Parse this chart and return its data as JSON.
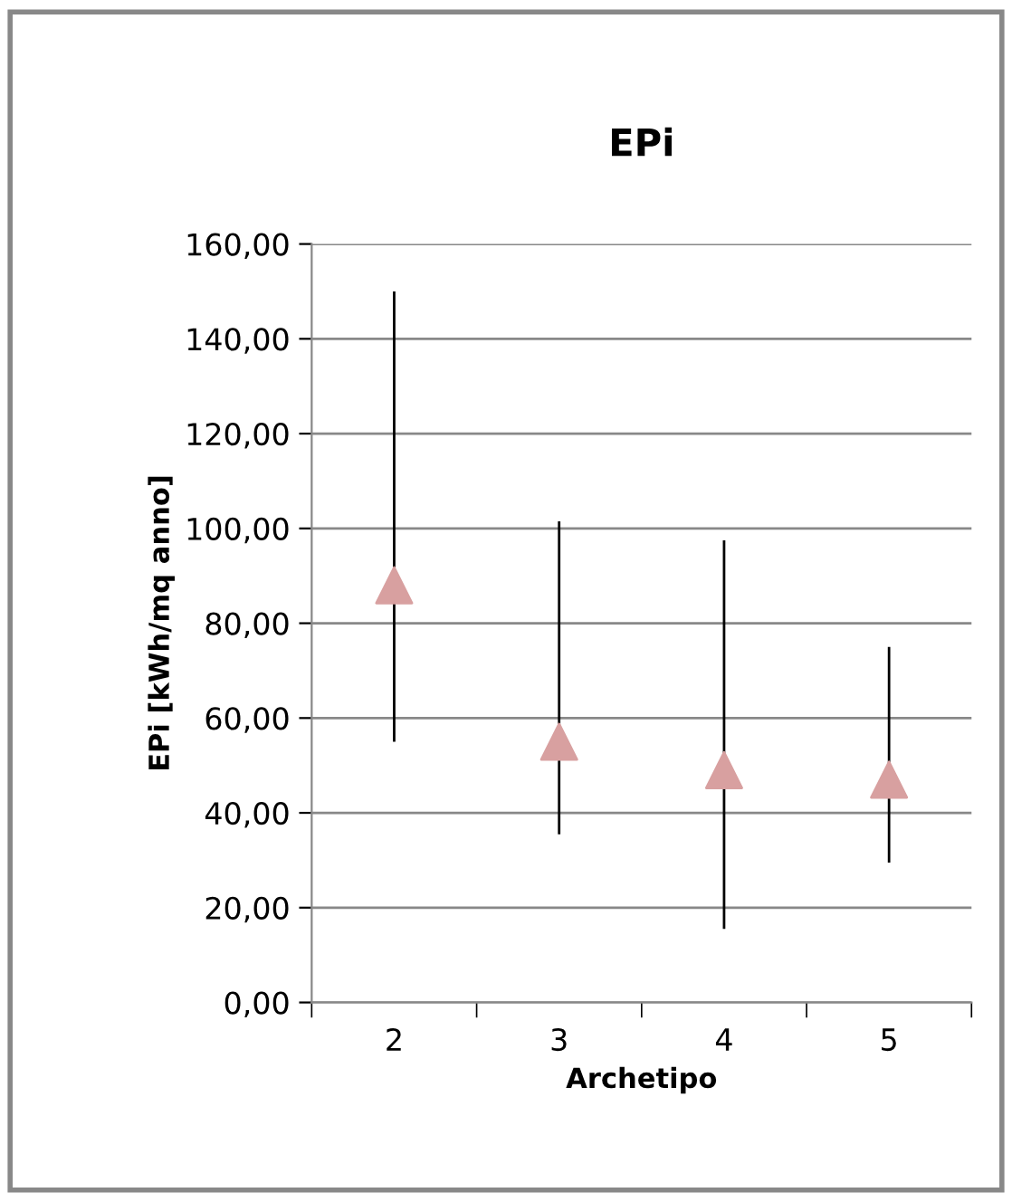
{
  "chart_data": {
    "type": "scatter",
    "title": "EPi",
    "xlabel": "Archetipo",
    "ylabel": "EPi [kWh/mq anno]",
    "categories": [
      "2",
      "3",
      "4",
      "5"
    ],
    "values": [
      88,
      55,
      49,
      47
    ],
    "errors": [
      [
        55,
        150
      ],
      [
        35.5,
        101.5
      ],
      [
        15.5,
        97.5
      ],
      [
        29.5,
        75
      ]
    ],
    "color": "#d8a0a0",
    "marker": "triangle",
    "grid": "y",
    "legend": false,
    "ylim": [
      0,
      160
    ],
    "yticks": [
      {
        "value": 0,
        "label": "0,00"
      },
      {
        "value": 20,
        "label": "20,00"
      },
      {
        "value": 40,
        "label": "40,00"
      },
      {
        "value": 60,
        "label": "60,00"
      },
      {
        "value": 80,
        "label": "80,00"
      },
      {
        "value": 100,
        "label": "100,00"
      },
      {
        "value": 120,
        "label": "120,00"
      },
      {
        "value": 140,
        "label": "140,00"
      },
      {
        "value": 160,
        "label": "160,00"
      }
    ]
  }
}
